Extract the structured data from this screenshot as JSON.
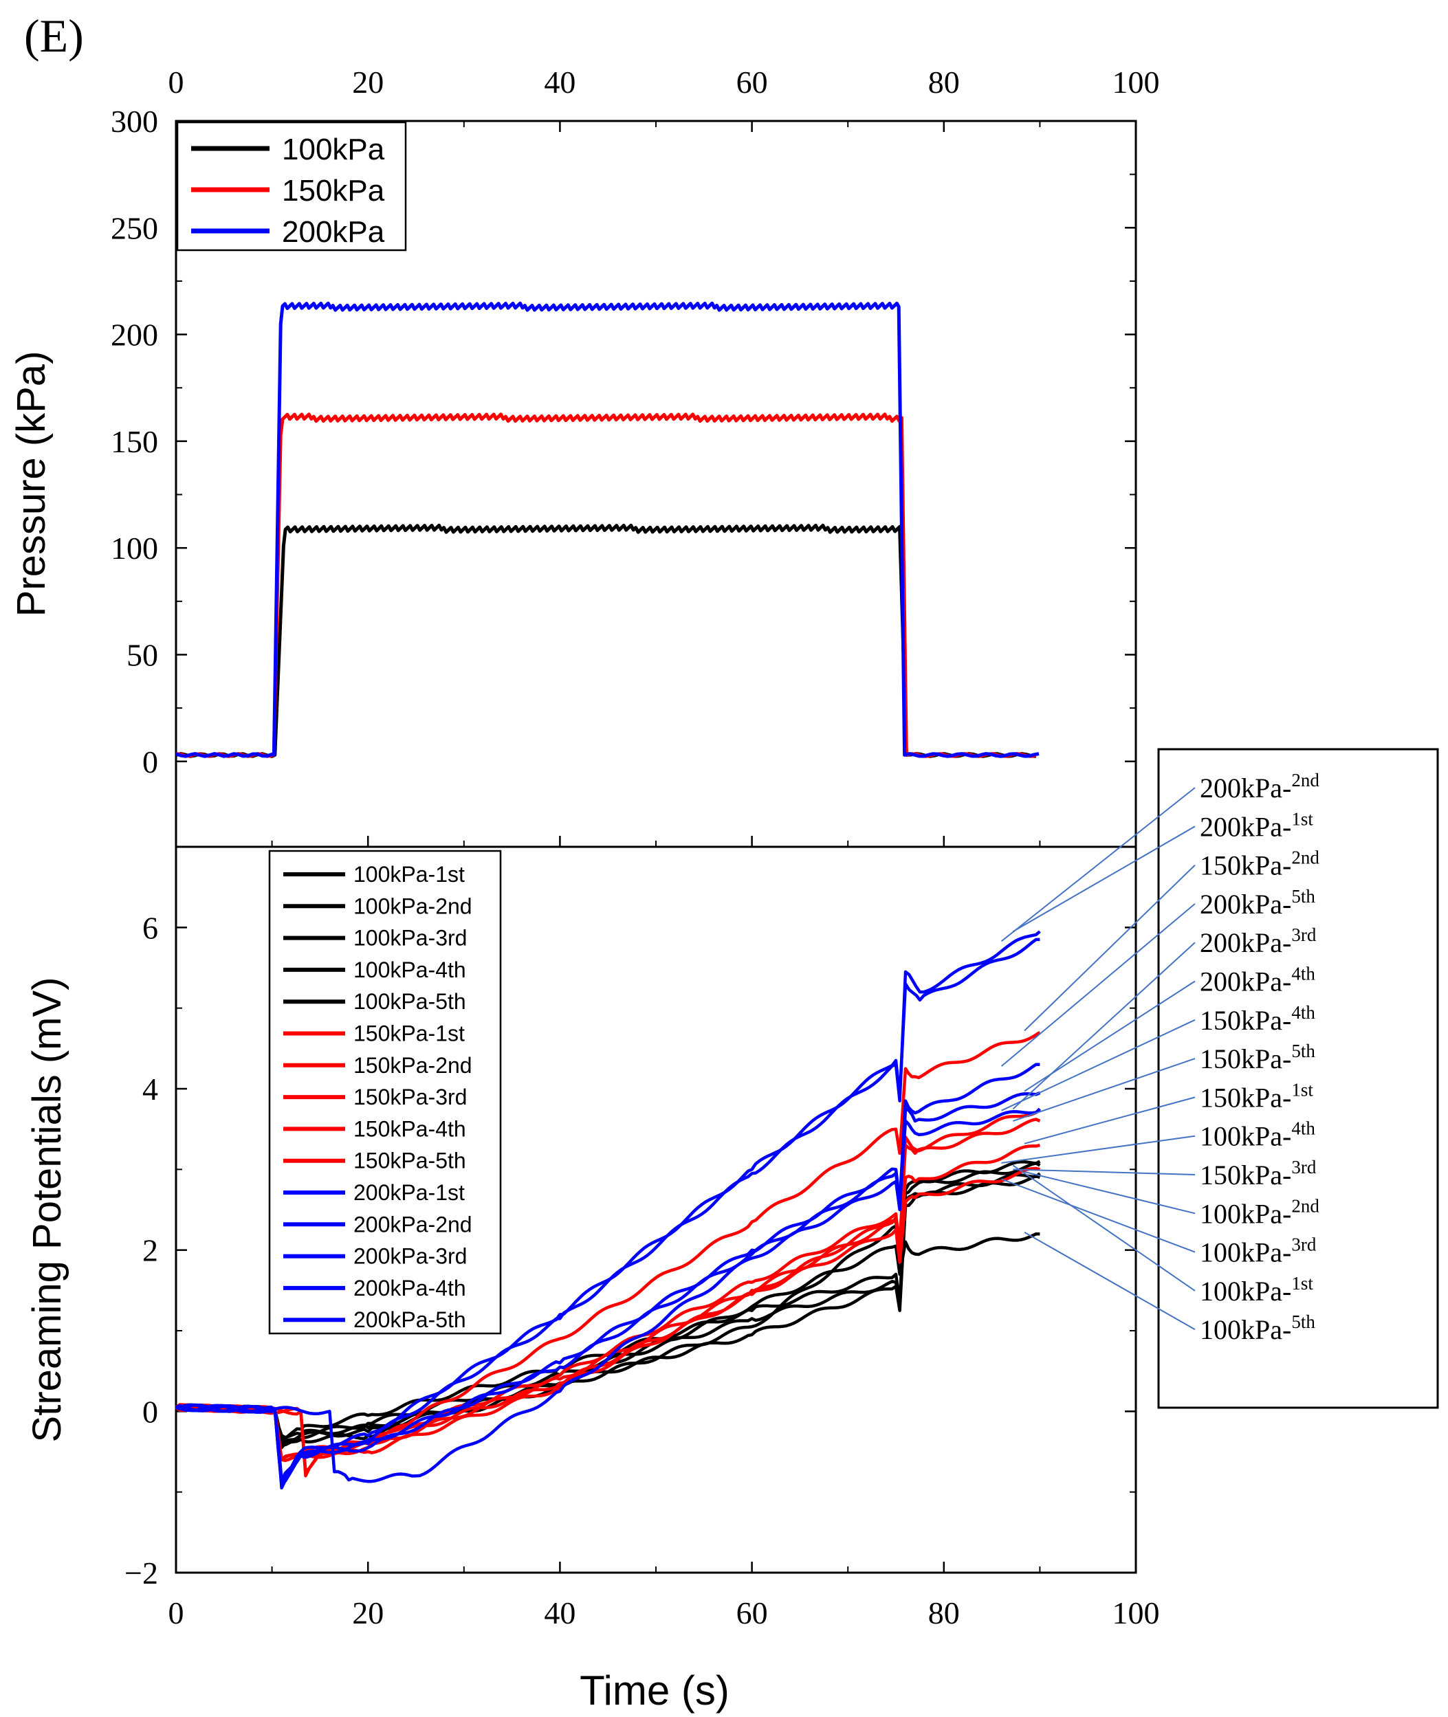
{
  "panel_label": "(E)",
  "colors": {
    "black": "#000000",
    "red": "#ff0000",
    "blue": "#0000ff",
    "leader": "#4472c4"
  },
  "chart_data": [
    {
      "type": "line",
      "id": "pressure",
      "title": "",
      "xlabel": "Time (s)",
      "ylabel": "Pressure (kPa)",
      "xlim": [
        0,
        100
      ],
      "ylim": [
        -40,
        300
      ],
      "xticks": [
        0,
        20,
        40,
        60,
        80,
        100
      ],
      "yticks": [
        0,
        50,
        100,
        150,
        200,
        250,
        300
      ],
      "legend_position": "top-left",
      "series": [
        {
          "name": "100kPa",
          "color": "#000000",
          "baseline": 3,
          "plateau": 109,
          "rise_start": 10.3,
          "rise_end": 11.2,
          "fall_start": 75.4,
          "fall_end": 76.1,
          "end": 90
        },
        {
          "name": "150kPa",
          "color": "#ff0000",
          "baseline": 3,
          "plateau": 161,
          "rise_start": 10.2,
          "rise_end": 10.9,
          "fall_start": 75.6,
          "fall_end": 76.1,
          "end": 90
        },
        {
          "name": "200kPa",
          "color": "#0000ff",
          "baseline": 3,
          "plateau": 213,
          "rise_start": 10.2,
          "rise_end": 10.9,
          "fall_start": 75.3,
          "fall_end": 75.9,
          "end": 90
        }
      ]
    },
    {
      "type": "line",
      "id": "streaming",
      "title": "",
      "xlabel": "Time (s)",
      "ylabel": "Streaming Potentials (mV)",
      "xlim": [
        0,
        100
      ],
      "ylim": [
        -2,
        7
      ],
      "xticks": [
        0,
        20,
        40,
        60,
        80,
        100
      ],
      "yticks": [
        -2,
        0,
        2,
        4,
        6
      ],
      "legend_position": "top-left",
      "series": [
        {
          "name": "100kPa-1st",
          "color": "#000000",
          "points": [
            [
              0,
              0.05
            ],
            [
              10.3,
              0.02
            ],
            [
              11,
              -0.35
            ],
            [
              13,
              -0.22
            ],
            [
              20,
              -0.05
            ],
            [
              40,
              0.55
            ],
            [
              60,
              1.25
            ],
            [
              75,
              1.7
            ],
            [
              75.4,
              1.35
            ],
            [
              76,
              2.7
            ],
            [
              77,
              2.8
            ],
            [
              90,
              3.05
            ]
          ]
        },
        {
          "name": "100kPa-2nd",
          "color": "#000000",
          "points": [
            [
              0,
              0.05
            ],
            [
              10.3,
              0.02
            ],
            [
              11,
              -0.4
            ],
            [
              13,
              -0.3
            ],
            [
              20,
              -0.15
            ],
            [
              40,
              0.45
            ],
            [
              60,
              1.15
            ],
            [
              75,
              1.6
            ],
            [
              75.4,
              1.3
            ],
            [
              76,
              2.6
            ],
            [
              77,
              2.7
            ],
            [
              90,
              2.95
            ]
          ]
        },
        {
          "name": "100kPa-3rd",
          "color": "#000000",
          "points": [
            [
              0,
              0.05
            ],
            [
              10.3,
              0.02
            ],
            [
              11,
              -0.3
            ],
            [
              13,
              -0.28
            ],
            [
              20,
              -0.2
            ],
            [
              40,
              0.35
            ],
            [
              60,
              0.95
            ],
            [
              75,
              1.55
            ],
            [
              75.4,
              1.25
            ],
            [
              76,
              2.55
            ],
            [
              77,
              2.65
            ],
            [
              90,
              2.9
            ]
          ]
        },
        {
          "name": "100kPa-4th",
          "color": "#000000",
          "points": [
            [
              0,
              0.05
            ],
            [
              10.3,
              0.02
            ],
            [
              11,
              -0.45
            ],
            [
              13,
              -0.35
            ],
            [
              20,
              -0.3
            ],
            [
              40,
              0.3
            ],
            [
              60,
              1.05
            ],
            [
              75,
              2.3
            ],
            [
              75.4,
              1.9
            ],
            [
              76,
              2.75
            ],
            [
              77,
              2.85
            ],
            [
              90,
              3.1
            ]
          ]
        },
        {
          "name": "100kPa-5th",
          "color": "#000000",
          "points": [
            [
              0,
              0.05
            ],
            [
              10.3,
              0.02
            ],
            [
              11,
              -0.4
            ],
            [
              13,
              -0.3
            ],
            [
              20,
              -0.25
            ],
            [
              40,
              0.35
            ],
            [
              60,
              1.3
            ],
            [
              75,
              2.05
            ],
            [
              75.4,
              1.7
            ],
            [
              76,
              2.1
            ],
            [
              77,
              1.95
            ],
            [
              90,
              2.2
            ]
          ]
        },
        {
          "name": "150kPa-1st",
          "color": "#ff0000",
          "points": [
            [
              0,
              0.05
            ],
            [
              10.3,
              0.02
            ],
            [
              11,
              -0.6
            ],
            [
              13,
              -0.55
            ],
            [
              20,
              -0.35
            ],
            [
              40,
              0.45
            ],
            [
              60,
              1.6
            ],
            [
              75,
              2.45
            ],
            [
              75.4,
              2.0
            ],
            [
              76,
              2.9
            ],
            [
              77,
              2.85
            ],
            [
              90,
              3.3
            ]
          ]
        },
        {
          "name": "150kPa-2nd",
          "color": "#ff0000",
          "points": [
            [
              0,
              0.05
            ],
            [
              10.3,
              0.02
            ],
            [
              11,
              -0.6
            ],
            [
              13,
              -0.5
            ],
            [
              20,
              -0.4
            ],
            [
              40,
              0.9
            ],
            [
              60,
              2.35
            ],
            [
              75,
              3.5
            ],
            [
              75.4,
              3.2
            ],
            [
              76,
              4.25
            ],
            [
              77,
              4.15
            ],
            [
              90,
              4.7
            ]
          ]
        },
        {
          "name": "150kPa-3rd",
          "color": "#ff0000",
          "points": [
            [
              0,
              0.05
            ],
            [
              10.3,
              0.02
            ],
            [
              11,
              -0.6
            ],
            [
              13,
              -0.55
            ],
            [
              20,
              -0.5
            ],
            [
              40,
              0.3
            ],
            [
              60,
              1.45
            ],
            [
              75,
              2.25
            ],
            [
              75.4,
              1.85
            ],
            [
              76,
              2.6
            ],
            [
              77,
              2.65
            ],
            [
              90,
              3.0
            ]
          ]
        },
        {
          "name": "150kPa-4th",
          "color": "#ff0000",
          "points": [
            [
              0,
              0.05
            ],
            [
              13,
              0.0
            ],
            [
              13.5,
              -0.75
            ],
            [
              15,
              -0.55
            ],
            [
              20,
              -0.45
            ],
            [
              40,
              0.4
            ],
            [
              60,
              1.5
            ],
            [
              75,
              2.35
            ],
            [
              75.4,
              2.0
            ],
            [
              76,
              3.4
            ],
            [
              77,
              3.25
            ],
            [
              90,
              3.75
            ]
          ]
        },
        {
          "name": "150kPa-5th",
          "color": "#ff0000",
          "points": [
            [
              0,
              0.05
            ],
            [
              13,
              0.0
            ],
            [
              13.5,
              -0.8
            ],
            [
              15,
              -0.5
            ],
            [
              20,
              -0.4
            ],
            [
              40,
              0.35
            ],
            [
              60,
              1.45
            ],
            [
              75,
              2.4
            ],
            [
              75.4,
              2.1
            ],
            [
              76,
              3.3
            ],
            [
              77,
              3.2
            ],
            [
              90,
              3.6
            ]
          ]
        },
        {
          "name": "200kPa-1st",
          "color": "#0000ff",
          "points": [
            [
              0,
              0.05
            ],
            [
              10.3,
              0.02
            ],
            [
              11,
              -0.95
            ],
            [
              13,
              -0.5
            ],
            [
              20,
              -0.45
            ],
            [
              40,
              0.6
            ],
            [
              60,
              2.0
            ],
            [
              75,
              3.0
            ],
            [
              75.4,
              2.6
            ],
            [
              76,
              3.6
            ],
            [
              77,
              3.45
            ],
            [
              90,
              3.75
            ]
          ]
        },
        {
          "name": "200kPa-2nd",
          "color": "#0000ff",
          "points": [
            [
              0,
              0.05
            ],
            [
              10.3,
              0.02
            ],
            [
              11,
              -0.9
            ],
            [
              13,
              -0.5
            ],
            [
              20,
              -0.3
            ],
            [
              40,
              1.2
            ],
            [
              60,
              3.0
            ],
            [
              75,
              4.35
            ],
            [
              75.4,
              3.9
            ],
            [
              76,
              5.3
            ],
            [
              77.5,
              5.1
            ],
            [
              90,
              5.85
            ]
          ]
        },
        {
          "name": "200kPa-3rd",
          "color": "#0000ff",
          "points": [
            [
              0,
              0.05
            ],
            [
              10.3,
              0.02
            ],
            [
              11,
              -0.85
            ],
            [
              13,
              -0.55
            ],
            [
              20,
              -0.35
            ],
            [
              40,
              1.15
            ],
            [
              60,
              2.95
            ],
            [
              75,
              4.3
            ],
            [
              75.4,
              3.85
            ],
            [
              76,
              5.45
            ],
            [
              77.5,
              5.2
            ],
            [
              90,
              5.95
            ]
          ]
        },
        {
          "name": "200kPa-4th",
          "color": "#0000ff",
          "points": [
            [
              0,
              0.05
            ],
            [
              10.3,
              0.02
            ],
            [
              11,
              -0.9
            ],
            [
              13,
              -0.55
            ],
            [
              20,
              -0.4
            ],
            [
              40,
              0.55
            ],
            [
              60,
              1.95
            ],
            [
              75,
              2.95
            ],
            [
              75.4,
              2.6
            ],
            [
              76,
              3.85
            ],
            [
              77,
              3.7
            ],
            [
              90,
              4.3
            ]
          ]
        },
        {
          "name": "200kPa-5th",
          "color": "#0000ff",
          "points": [
            [
              0,
              0.05
            ],
            [
              16,
              0.0
            ],
            [
              16.5,
              -0.75
            ],
            [
              18,
              -0.85
            ],
            [
              25,
              -0.8
            ],
            [
              40,
              0.25
            ],
            [
              60,
              1.9
            ],
            [
              75,
              2.85
            ],
            [
              75.4,
              2.5
            ],
            [
              76,
              3.75
            ],
            [
              77,
              3.6
            ],
            [
              90,
              3.95
            ]
          ]
        }
      ],
      "annotations": [
        {
          "label": "200kPa-",
          "sup": "2nd",
          "series": "200kPa-2nd"
        },
        {
          "label": "200kPa-",
          "sup": "1st",
          "series": "200kPa-3rd"
        },
        {
          "label": "150kPa-",
          "sup": "2nd",
          "series": "150kPa-2nd"
        },
        {
          "label": "200kPa-",
          "sup": "5th",
          "series": "200kPa-4th"
        },
        {
          "label": "200kPa-",
          "sup": "3rd",
          "series": "200kPa-1st"
        },
        {
          "label": "200kPa-",
          "sup": "4th",
          "series": "200kPa-5th"
        },
        {
          "label": "150kPa-",
          "sup": "4th",
          "series": "150kPa-4th"
        },
        {
          "label": "150kPa-",
          "sup": "5th",
          "series": "150kPa-5th"
        },
        {
          "label": "150kPa-",
          "sup": "1st",
          "series": "150kPa-1st"
        },
        {
          "label": "100kPa-",
          "sup": "4th",
          "series": "100kPa-4th"
        },
        {
          "label": "150kPa-",
          "sup": "3rd",
          "series": "150kPa-3rd"
        },
        {
          "label": "100kPa-",
          "sup": "2nd",
          "series": "100kPa-2nd"
        },
        {
          "label": "100kPa-",
          "sup": "3rd",
          "series": "100kPa-3rd"
        },
        {
          "label": "100kPa-",
          "sup": "1st",
          "series": "100kPa-1st"
        },
        {
          "label": "100kPa-",
          "sup": "5th",
          "series": "100kPa-5th"
        }
      ]
    }
  ]
}
